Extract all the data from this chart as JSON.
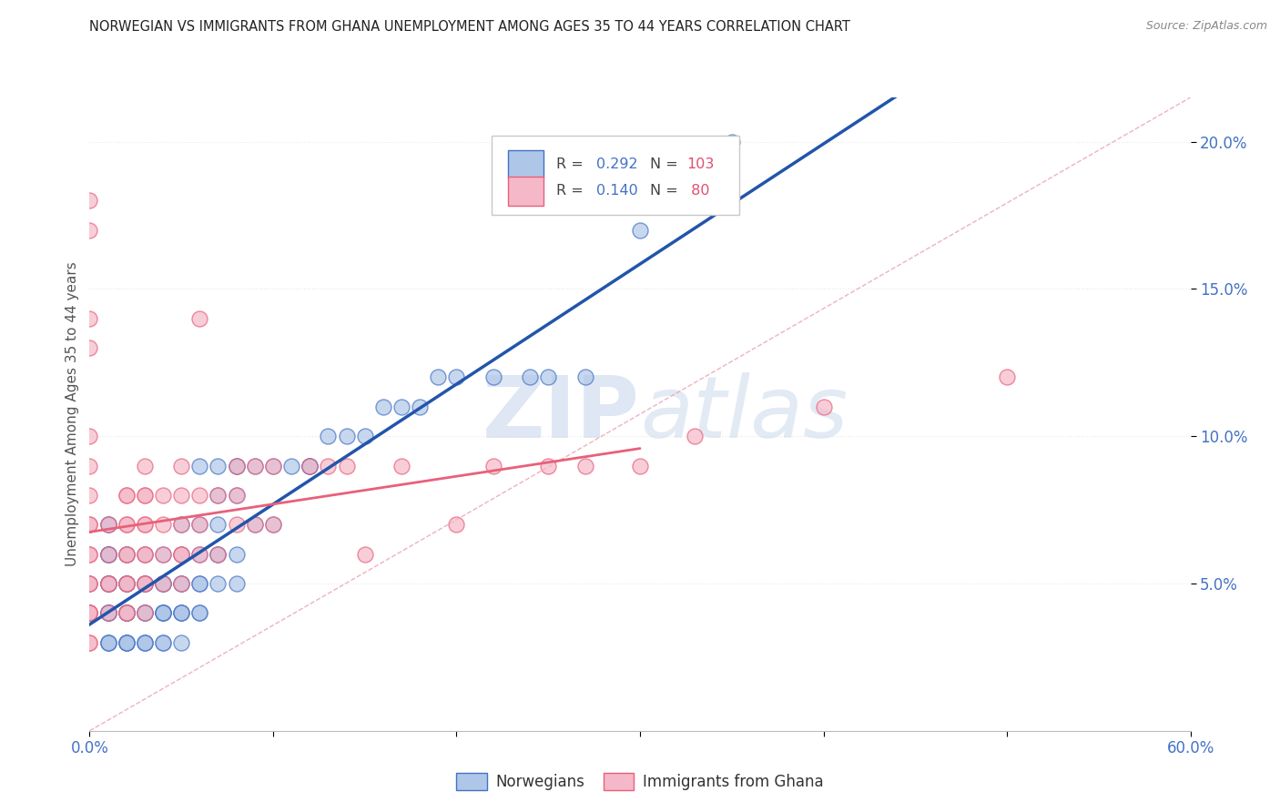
{
  "title": "NORWEGIAN VS IMMIGRANTS FROM GHANA UNEMPLOYMENT AMONG AGES 35 TO 44 YEARS CORRELATION CHART",
  "source": "Source: ZipAtlas.com",
  "ylabel": "Unemployment Among Ages 35 to 44 years",
  "xlim": [
    0.0,
    0.6
  ],
  "ylim": [
    0.0,
    0.215
  ],
  "yticks": [
    0.05,
    0.1,
    0.15,
    0.2
  ],
  "ytick_labels": [
    "5.0%",
    "10.0%",
    "15.0%",
    "20.0%"
  ],
  "xticks": [
    0.0,
    0.1,
    0.2,
    0.3,
    0.4,
    0.5,
    0.6
  ],
  "xtick_labels": [
    "0.0%",
    "",
    "",
    "",
    "",
    "",
    "60.0%"
  ],
  "norwegian_color": "#aec6e8",
  "ghana_color": "#f5b8c8",
  "norwegian_edge_color": "#4472c4",
  "ghana_edge_color": "#e8607a",
  "norwegian_line_color": "#2255aa",
  "ghana_line_color": "#e8607a",
  "background_color": "#ffffff",
  "grid_color": "#e8e8e8",
  "watermark_color": "#dce8f5",
  "norwegian_x": [
    0.0,
    0.0,
    0.01,
    0.01,
    0.01,
    0.01,
    0.01,
    0.01,
    0.01,
    0.01,
    0.01,
    0.01,
    0.01,
    0.01,
    0.01,
    0.01,
    0.01,
    0.01,
    0.01,
    0.01,
    0.02,
    0.02,
    0.02,
    0.02,
    0.02,
    0.02,
    0.02,
    0.02,
    0.02,
    0.02,
    0.02,
    0.02,
    0.02,
    0.02,
    0.02,
    0.03,
    0.03,
    0.03,
    0.03,
    0.03,
    0.03,
    0.03,
    0.03,
    0.03,
    0.03,
    0.04,
    0.04,
    0.04,
    0.04,
    0.04,
    0.04,
    0.04,
    0.04,
    0.04,
    0.04,
    0.05,
    0.05,
    0.05,
    0.05,
    0.05,
    0.05,
    0.05,
    0.05,
    0.06,
    0.06,
    0.06,
    0.06,
    0.06,
    0.06,
    0.06,
    0.07,
    0.07,
    0.07,
    0.07,
    0.07,
    0.07,
    0.08,
    0.08,
    0.08,
    0.08,
    0.08,
    0.09,
    0.09,
    0.1,
    0.1,
    0.11,
    0.12,
    0.12,
    0.12,
    0.13,
    0.14,
    0.15,
    0.16,
    0.17,
    0.18,
    0.19,
    0.2,
    0.22,
    0.24,
    0.25,
    0.27,
    0.3,
    0.35
  ],
  "norwegian_y": [
    0.04,
    0.05,
    0.03,
    0.03,
    0.03,
    0.04,
    0.04,
    0.04,
    0.04,
    0.05,
    0.05,
    0.05,
    0.05,
    0.05,
    0.06,
    0.06,
    0.06,
    0.06,
    0.07,
    0.07,
    0.03,
    0.03,
    0.03,
    0.03,
    0.04,
    0.04,
    0.04,
    0.04,
    0.04,
    0.05,
    0.05,
    0.05,
    0.05,
    0.06,
    0.06,
    0.03,
    0.03,
    0.03,
    0.04,
    0.04,
    0.04,
    0.05,
    0.05,
    0.05,
    0.06,
    0.03,
    0.04,
    0.04,
    0.04,
    0.05,
    0.05,
    0.05,
    0.06,
    0.03,
    0.04,
    0.03,
    0.04,
    0.04,
    0.04,
    0.05,
    0.05,
    0.06,
    0.07,
    0.04,
    0.04,
    0.05,
    0.05,
    0.06,
    0.07,
    0.09,
    0.05,
    0.06,
    0.06,
    0.07,
    0.08,
    0.09,
    0.05,
    0.06,
    0.08,
    0.09,
    0.09,
    0.07,
    0.09,
    0.07,
    0.09,
    0.09,
    0.09,
    0.09,
    0.09,
    0.1,
    0.1,
    0.1,
    0.11,
    0.11,
    0.11,
    0.12,
    0.12,
    0.12,
    0.12,
    0.12,
    0.12,
    0.17,
    0.2
  ],
  "ghana_x": [
    0.0,
    0.0,
    0.0,
    0.0,
    0.0,
    0.0,
    0.0,
    0.0,
    0.0,
    0.0,
    0.0,
    0.0,
    0.0,
    0.0,
    0.0,
    0.0,
    0.0,
    0.0,
    0.0,
    0.01,
    0.01,
    0.01,
    0.01,
    0.01,
    0.02,
    0.02,
    0.02,
    0.02,
    0.02,
    0.02,
    0.02,
    0.02,
    0.02,
    0.02,
    0.03,
    0.03,
    0.03,
    0.03,
    0.03,
    0.03,
    0.03,
    0.03,
    0.03,
    0.03,
    0.04,
    0.04,
    0.04,
    0.04,
    0.05,
    0.05,
    0.05,
    0.05,
    0.05,
    0.05,
    0.06,
    0.06,
    0.06,
    0.06,
    0.07,
    0.07,
    0.08,
    0.08,
    0.08,
    0.09,
    0.09,
    0.1,
    0.1,
    0.12,
    0.13,
    0.14,
    0.15,
    0.17,
    0.2,
    0.22,
    0.25,
    0.27,
    0.3,
    0.33,
    0.4,
    0.5
  ],
  "ghana_y": [
    0.03,
    0.03,
    0.04,
    0.04,
    0.04,
    0.04,
    0.05,
    0.05,
    0.06,
    0.06,
    0.07,
    0.07,
    0.08,
    0.09,
    0.1,
    0.13,
    0.14,
    0.17,
    0.18,
    0.04,
    0.05,
    0.05,
    0.06,
    0.07,
    0.04,
    0.04,
    0.05,
    0.05,
    0.06,
    0.06,
    0.07,
    0.07,
    0.08,
    0.08,
    0.04,
    0.05,
    0.05,
    0.06,
    0.06,
    0.07,
    0.07,
    0.08,
    0.08,
    0.09,
    0.05,
    0.06,
    0.07,
    0.08,
    0.05,
    0.06,
    0.06,
    0.07,
    0.08,
    0.09,
    0.06,
    0.07,
    0.08,
    0.14,
    0.06,
    0.08,
    0.07,
    0.08,
    0.09,
    0.07,
    0.09,
    0.07,
    0.09,
    0.09,
    0.09,
    0.09,
    0.06,
    0.09,
    0.07,
    0.09,
    0.09,
    0.09,
    0.09,
    0.1,
    0.11,
    0.12
  ]
}
